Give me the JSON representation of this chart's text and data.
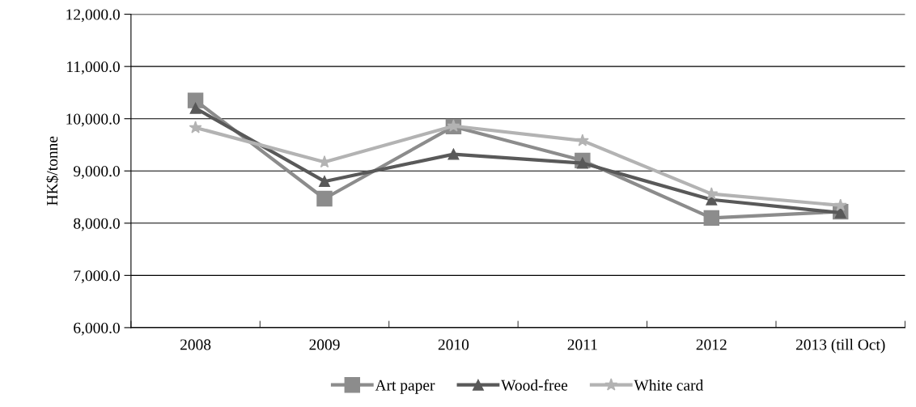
{
  "chart_data": {
    "type": "line",
    "ylabel": "HK$/tonne",
    "categories": [
      "2008",
      "2009",
      "2010",
      "2011",
      "2012",
      "2013 (till Oct)"
    ],
    "series": [
      {
        "name": "Art paper",
        "color": "#8c8c8c",
        "marker": "square",
        "values": [
          10350,
          8470,
          9850,
          9200,
          8100,
          8220
        ]
      },
      {
        "name": "Wood-free",
        "color": "#595959",
        "marker": "triangle",
        "values": [
          10200,
          8800,
          9320,
          9150,
          8450,
          8200
        ]
      },
      {
        "name": "White card",
        "color": "#b3b3b3",
        "marker": "star",
        "values": [
          9830,
          9170,
          9860,
          9580,
          8560,
          8340
        ]
      }
    ],
    "ylim": [
      6000,
      12000
    ],
    "yticks": [
      {
        "value": 6000,
        "label": "6,000.0"
      },
      {
        "value": 7000,
        "label": "7,000.0"
      },
      {
        "value": 8000,
        "label": "8,000.0"
      },
      {
        "value": 9000,
        "label": "9,000.0"
      },
      {
        "value": 10000,
        "label": "10,000.0"
      },
      {
        "value": 11000,
        "label": "11,000.0"
      },
      {
        "value": 12000,
        "label": "12,000.0"
      }
    ],
    "grid": "y",
    "legend": "bottom",
    "line_style": "solid"
  }
}
